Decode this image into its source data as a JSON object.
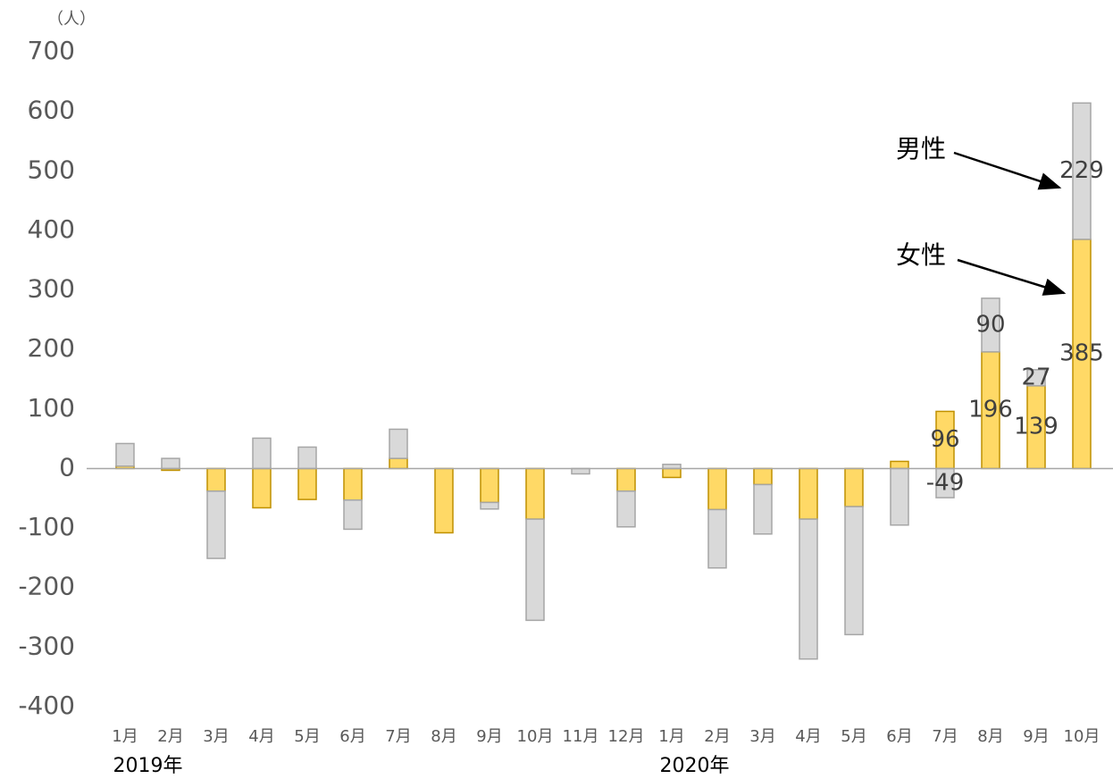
{
  "chart_data": {
    "type": "stacked_bar",
    "unit_label": "（人）",
    "categories": [
      "1月",
      "2月",
      "3月",
      "4月",
      "5月",
      "6月",
      "7月",
      "8月",
      "9月",
      "10月",
      "11月",
      "12月",
      "1月",
      "2月",
      "3月",
      "4月",
      "5月",
      "6月",
      "7月",
      "8月",
      "9月",
      "10月"
    ],
    "x_group_labels": [
      "2019年",
      "2020年"
    ],
    "x_group_starts": [
      0,
      12
    ],
    "series": [
      {
        "name": "女性",
        "color": "#FFD966",
        "stroke": "#BF9000",
        "values": [
          4,
          -3,
          -38,
          -66,
          -52,
          -53,
          17,
          -108,
          -57,
          -85,
          0,
          -38,
          -15,
          -69,
          -27,
          -85,
          -64,
          12,
          96,
          196,
          139,
          385
        ],
        "value_labels": [
          null,
          null,
          null,
          null,
          null,
          null,
          null,
          null,
          null,
          null,
          null,
          null,
          null,
          null,
          null,
          null,
          null,
          null,
          "96",
          "196",
          "139",
          "385"
        ]
      },
      {
        "name": "男性",
        "color": "#D9D9D9",
        "stroke": "#A6A6A6",
        "values": [
          38,
          17,
          -113,
          51,
          36,
          -49,
          49,
          0,
          -11,
          -170,
          -9,
          -60,
          7,
          -98,
          -83,
          -235,
          -215,
          -95,
          -49,
          90,
          27,
          229
        ],
        "value_labels": [
          null,
          null,
          null,
          null,
          null,
          null,
          null,
          null,
          null,
          null,
          null,
          null,
          null,
          null,
          null,
          null,
          null,
          null,
          "-49",
          "90",
          "27",
          "229"
        ]
      }
    ],
    "ylim": [
      -400,
      700
    ],
    "yticks": [
      -400,
      -300,
      -200,
      -100,
      0,
      100,
      200,
      300,
      400,
      500,
      600,
      700
    ],
    "grid": false
  }
}
